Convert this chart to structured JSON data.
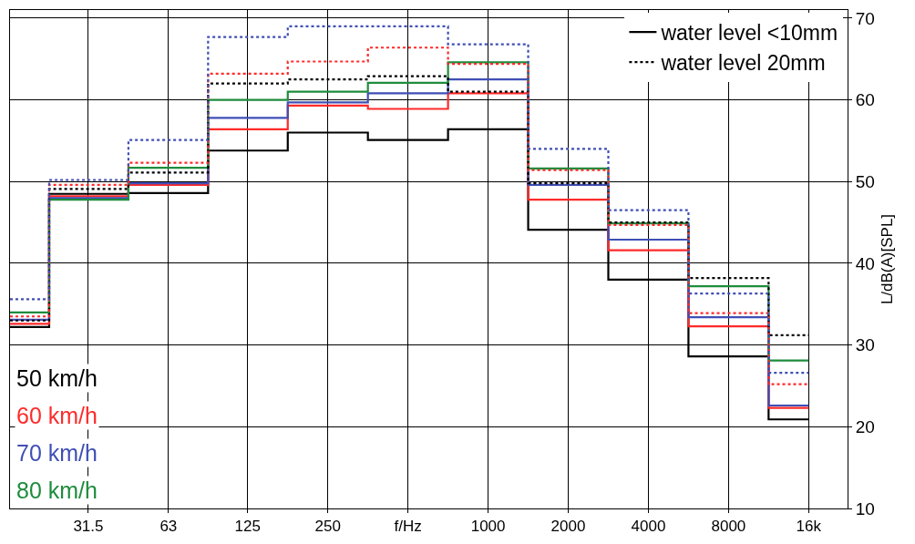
{
  "chart_data": {
    "type": "step",
    "x": [
      16,
      31.5,
      63,
      125,
      250,
      500,
      1000,
      2000,
      4000,
      8000,
      16000
    ],
    "log": "x",
    "xlim": [
      16,
      22400
    ],
    "xticks": [
      31.5,
      63,
      125,
      250,
      {
        "value": 500,
        "label": "f/Hz"
      },
      1000,
      2000,
      4000,
      8000,
      {
        "value": 16000,
        "label": "16k"
      }
    ],
    "ylim": [
      10,
      71
    ],
    "yticks": [
      10,
      20,
      30,
      40,
      50,
      60,
      70
    ],
    "ylabel": "L/dB(A)[SPL]",
    "grid": true,
    "legend": "bottom left",
    "series": [
      {
        "name": "50 km/h",
        "color": "#000000",
        "line_style": "solid",
        "values": [
          32.2,
          48.5,
          48.6,
          53.8,
          56.0,
          55.1,
          56.4,
          44.1,
          38.0,
          28.6,
          20.9
        ]
      },
      {
        "name": "60 km/h",
        "color": "#ff2a2a",
        "line_style": "solid",
        "values": [
          32.6,
          48.2,
          49.6,
          56.4,
          59.3,
          58.9,
          60.8,
          47.8,
          41.6,
          32.3,
          22.3
        ]
      },
      {
        "name": "70 km/h",
        "color": "#3f4fb5",
        "line_style": "solid",
        "values": [
          33.1,
          48.0,
          49.8,
          57.8,
          59.7,
          60.8,
          62.5,
          49.6,
          42.9,
          33.4,
          22.6
        ]
      },
      {
        "name": "80 km/h",
        "color": "#1e8c3c",
        "line_style": "solid",
        "values": [
          34.0,
          47.8,
          51.7,
          60.0,
          61.0,
          62.1,
          64.6,
          51.6,
          44.9,
          37.2,
          28.1
        ]
      },
      {
        "color": "#000000",
        "line_style": "dotted",
        "values": [
          33.0,
          49.1,
          51.1,
          62.0,
          62.5,
          62.9,
          61.0,
          49.8,
          45.0,
          38.2,
          31.2
        ]
      },
      {
        "color": "#ff2a2a",
        "line_style": "dotted",
        "values": [
          33.5,
          49.6,
          52.3,
          63.2,
          64.7,
          66.4,
          64.4,
          51.4,
          44.7,
          33.9,
          25.2
        ]
      },
      {
        "color": "#3f4fb5",
        "line_style": "dotted",
        "values": [
          35.6,
          50.2,
          55.1,
          67.7,
          69.0,
          69.0,
          66.8,
          54.0,
          46.5,
          36.3,
          26.6
        ]
      }
    ],
    "annotations": [
      "water level <10mm",
      "water level 20mm"
    ]
  }
}
